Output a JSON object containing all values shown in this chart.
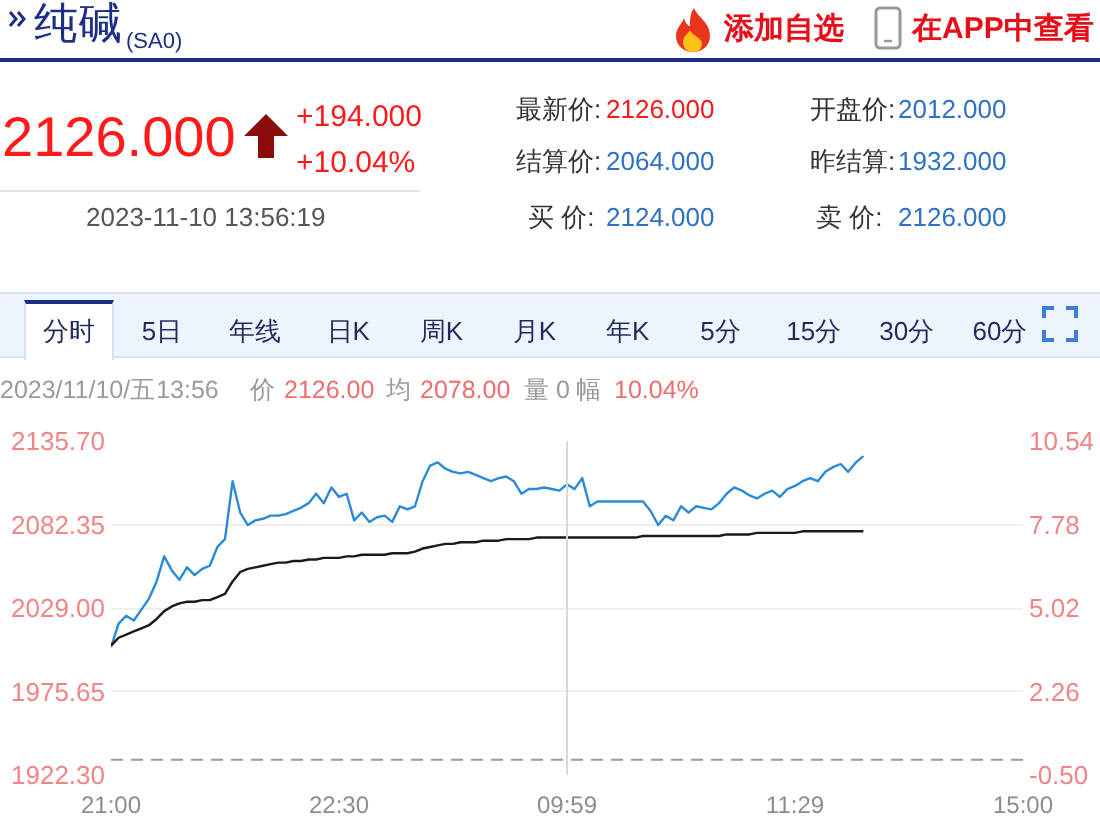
{
  "chart_data": {
    "type": "line",
    "title": "纯碱",
    "subtitle": "(SA0)",
    "annotations": [
      "添加自选",
      "在APP中查看",
      "2126.000",
      "+194.000",
      "+10.04%",
      "最新价:",
      "2126.000",
      "开盘价:",
      "2012.000",
      "结算价:",
      "2064.000",
      "昨结算:",
      "1932.000",
      "2023-11-10 13:56:19",
      "买 价:",
      "2124.000",
      "卖 价:",
      "2126.000",
      "分时",
      "5日",
      "年线",
      "日K",
      "周K",
      "月K",
      "年K",
      "5分",
      "15分",
      "30分",
      "60分",
      "2023/11/10/五13:56",
      "价",
      "2126.00",
      "均",
      "2078.00",
      "量",
      "0",
      "幅",
      "10.04%"
    ],
    "categories": [
      "21:00",
      null,
      null,
      null,
      null,
      null,
      null,
      null,
      null,
      null,
      null,
      null,
      null,
      null,
      null,
      null,
      null,
      null,
      null,
      null,
      null,
      null,
      null,
      null,
      null,
      null,
      null,
      null,
      null,
      null,
      "22:30",
      null,
      null,
      null,
      null,
      null,
      null,
      null,
      null,
      null,
      null,
      null,
      null,
      null,
      null,
      null,
      null,
      null,
      null,
      null,
      null,
      null,
      null,
      null,
      null,
      null,
      null,
      null,
      null,
      null,
      "09:59",
      null,
      null,
      null,
      null,
      null,
      null,
      null,
      null,
      null,
      null,
      null,
      null,
      null,
      null,
      null,
      null,
      null,
      null,
      null,
      null,
      null,
      null,
      null,
      null,
      null,
      null,
      null,
      null,
      null,
      "11:29",
      null,
      null,
      null,
      null,
      null,
      null,
      null,
      null,
      null,
      null,
      null,
      null,
      null,
      null,
      null,
      null,
      null,
      null,
      null,
      null,
      null,
      null,
      null,
      null,
      null,
      null,
      null,
      null,
      null,
      "15:00"
    ],
    "ylim": [
      1922.3,
      2135.7
    ],
    "yticks": [
      {
        "value": 1922.3,
        "label": "1922.30"
      },
      1975.65,
      {
        "value": 2029,
        "label": "2029.00"
      },
      2082.35,
      {
        "value": 2135.7,
        "label": "2135.70"
      }
    ],
    "y2lim": [
      -0.5,
      10.54
    ],
    "y2ticks": [
      {
        "value": -0.5,
        "label": "-0.50"
      },
      2.26,
      5.02,
      7.78,
      10.54
    ],
    "grid": "y",
    "ref_lines": [
      {
        "axis": "y",
        "value": 1932,
        "color": "#999999",
        "line_style": "dashed"
      },
      {
        "axis": "x",
        "value": "09:59",
        "color": "#d9d9d9"
      }
    ],
    "series": [
      {
        "color": "#2b8ad8",
        "values": [
          2004,
          2019,
          2024,
          2021,
          2028,
          2035,
          2046,
          2062,
          2053,
          2047,
          2055,
          2050,
          2054,
          2056,
          2068,
          2073,
          2110,
          2090,
          2082,
          2085,
          2086,
          2088,
          2088,
          2089,
          2091,
          2093,
          2096,
          2102,
          2096,
          2106,
          2100,
          2102,
          2085,
          2090,
          2084,
          2087,
          2088,
          2084,
          2094,
          2092,
          2094,
          2110,
          2120,
          2122,
          2118,
          2116,
          2115,
          2116,
          2114,
          2112,
          2110,
          2112,
          2113,
          2110,
          2102,
          2105,
          2105,
          2106,
          2105,
          2104,
          2108,
          2105,
          2112,
          2094,
          2097,
          2097,
          2097,
          2097,
          2097,
          2097,
          2097,
          2091,
          2082,
          2088,
          2085,
          2094,
          2090,
          2094,
          2093,
          2092,
          2096,
          2102,
          2106,
          2104,
          2101,
          2099,
          2102,
          2104,
          2100,
          2105,
          2107,
          2110,
          2112,
          2110,
          2116,
          2119,
          2121,
          2116,
          2122,
          2126,
          null,
          null,
          null,
          null,
          null,
          null,
          null,
          null,
          null,
          null,
          null,
          null,
          null,
          null,
          null,
          null,
          null,
          null,
          null,
          null,
          null
        ]
      },
      {
        "color": "#1a1a1a",
        "values": [
          2005,
          2010,
          2012,
          2014,
          2016,
          2018,
          2022,
          2027,
          2030,
          2032,
          2033,
          2033,
          2034,
          2034,
          2036,
          2038,
          2046,
          2052,
          2054,
          2055,
          2056,
          2057,
          2058,
          2058,
          2059,
          2059,
          2060,
          2060,
          2061,
          2061,
          2061,
          2062,
          2062,
          2063,
          2063,
          2063,
          2063,
          2064,
          2064,
          2064,
          2065,
          2067,
          2068,
          2069,
          2070,
          2070,
          2071,
          2071,
          2071,
          2072,
          2072,
          2072,
          2073,
          2073,
          2073,
          2073,
          2074,
          2074,
          2074,
          2074,
          2074,
          2074,
          2074,
          2074,
          2074,
          2074,
          2074,
          2074,
          2074,
          2074,
          2075,
          2075,
          2075,
          2075,
          2075,
          2075,
          2075,
          2075,
          2075,
          2075,
          2075,
          2076,
          2076,
          2076,
          2076,
          2077,
          2077,
          2077,
          2077,
          2077,
          2077,
          2078,
          2078,
          2078,
          2078,
          2078,
          2078,
          2078,
          2078,
          2078,
          null,
          null,
          null,
          null,
          null,
          null,
          null,
          null,
          null,
          null,
          null,
          null,
          null,
          null,
          null,
          null,
          null,
          null,
          null,
          null,
          null
        ]
      }
    ]
  }
}
